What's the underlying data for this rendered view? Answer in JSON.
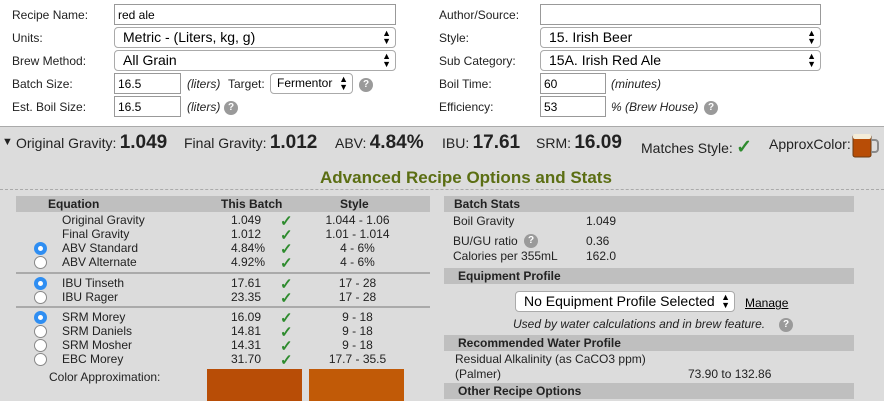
{
  "form": {
    "recipe_name_label": "Recipe Name:",
    "recipe_name_value": "red ale",
    "units_label": "Units:",
    "units_value": "Metric - (Liters, kg, g)",
    "brew_method_label": "Brew Method:",
    "brew_method_value": "All Grain",
    "batch_size_label": "Batch Size:",
    "batch_size_value": "16.5",
    "batch_size_unit": "(liters)",
    "target_label": "Target:",
    "target_value": "Fermentor",
    "boil_size_label": "Est. Boil Size:",
    "boil_size_value": "16.5",
    "boil_size_unit": "(liters)",
    "author_label": "Author/Source:",
    "author_value": "",
    "style_label": "Style:",
    "style_value": "15. Irish Beer",
    "subcat_label": "Sub Category:",
    "subcat_value": "15A. Irish Red Ale",
    "boil_time_label": "Boil Time:",
    "boil_time_value": "60",
    "boil_time_unit": "(minutes)",
    "efficiency_label": "Efficiency:",
    "efficiency_value": "53",
    "efficiency_unit": "% (Brew House)"
  },
  "stats": {
    "og_label": "Original Gravity:",
    "og_value": "1.049",
    "fg_label": "Final Gravity:",
    "fg_value": "1.012",
    "abv_label": "ABV:",
    "abv_value": "4.84%",
    "ibu_label": "IBU:",
    "ibu_value": "17.61",
    "srm_label": "SRM:",
    "srm_value": "16.09",
    "matches_label": "Matches Style:",
    "approx_label": "ApproxColor:"
  },
  "advanced": {
    "title": "Advanced Recipe Options and Stats",
    "col_equation": "Equation",
    "col_this": "This Batch",
    "col_style": "Style",
    "rows": [
      {
        "name": "Original Gravity",
        "this": "1.049",
        "style": "1.044 - 1.06"
      },
      {
        "name": "Final Gravity",
        "this": "1.012",
        "style": "1.01 - 1.014"
      },
      {
        "name": "ABV Standard",
        "this": "4.84%",
        "style": "4 - 6%"
      },
      {
        "name": "ABV Alternate",
        "this": "4.92%",
        "style": "4 - 6%"
      },
      {
        "name": "IBU Tinseth",
        "this": "17.61",
        "style": "17 - 28"
      },
      {
        "name": "IBU Rager",
        "this": "23.35",
        "style": "17 - 28"
      },
      {
        "name": "SRM Morey",
        "this": "16.09",
        "style": "9 - 18"
      },
      {
        "name": "SRM Daniels",
        "this": "14.81",
        "style": "9 - 18"
      },
      {
        "name": "SRM Mosher",
        "this": "14.31",
        "style": "9 - 18"
      },
      {
        "name": "EBC Morey",
        "this": "31.70",
        "style": "17.7 - 35.5"
      }
    ],
    "color_approx_label": "Color Approximation:",
    "swatch_colors": [
      "#b84d06",
      "#c15a07"
    ]
  },
  "batch_stats": {
    "title": "Batch Stats",
    "boil_gravity_label": "Boil Gravity",
    "boil_gravity_value": "1.049",
    "bugu_label": "BU/GU ratio",
    "bugu_value": "0.36",
    "calories_label": "Calories per 355mL",
    "calories_value": "162.0"
  },
  "equipment": {
    "title": "Equipment Profile",
    "select_value": "No Equipment Profile Selected",
    "manage_label": "Manage",
    "note": "Used by water calculations and in brew feature."
  },
  "water": {
    "title": "Recommended Water Profile",
    "residual_label": "Residual Alkalinity (as CaCO3 ppm)",
    "palmer_label": "(Palmer)",
    "range": "73.90 to 132.86"
  },
  "other": {
    "title": "Other Recipe Options"
  },
  "colors": {
    "check": "#2e8b2e",
    "advanced_title": "#5b6e13",
    "radio_on": "#2f8ef2"
  }
}
